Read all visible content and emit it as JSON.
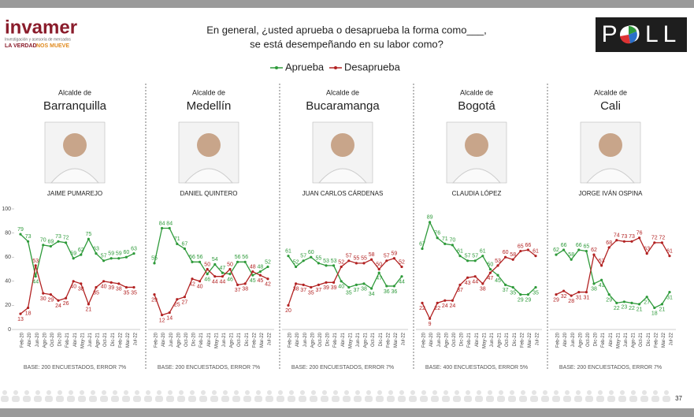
{
  "header": {
    "logo_text": "invamer",
    "logo_sub": "Investigación y asesoría de mercados",
    "slogan_a": "LA VERDAD",
    "slogan_b": "NOS MUEVE",
    "question_line1": "En general, ¿usted aprueba o desaprueba la forma como___,",
    "question_line2": "se está desempeñando en su labor como?",
    "poll_logo": "POLL"
  },
  "page_number": "37",
  "chart_data": [
    {
      "type": "line",
      "pretitle": "Alcalde de",
      "title": "Barranquilla",
      "person": "JAIME PUMAREJO",
      "note": "BASE: 200 ENCUESTADOS, ERROR 7%",
      "categories": [
        "Feb-20",
        "Abr-20",
        "Jun-20",
        "Ago-20",
        "Oct-20",
        "Dic-20",
        "Feb-21",
        "Abr-21",
        "May-21",
        "Jun-21",
        "Ago-21",
        "Oct-21",
        "Dic-21",
        "Feb-22",
        "Mar-22",
        "Jul-22"
      ],
      "series": [
        {
          "name": "Aprueba",
          "color": "#2e9a3a",
          "values": [
            79,
            73,
            44,
            70,
            69,
            73,
            72,
            59,
            62,
            75,
            63,
            57,
            59,
            59,
            60,
            63
          ]
        },
        {
          "name": "Desaprueba",
          "color": "#b22222",
          "values": [
            13,
            18,
            53,
            30,
            29,
            24,
            26,
            40,
            38,
            21,
            35,
            40,
            39,
            38,
            35,
            35
          ]
        }
      ],
      "ylim": [
        0,
        100
      ],
      "yticks": [
        0,
        20,
        40,
        60,
        80,
        100
      ]
    },
    {
      "type": "line",
      "pretitle": "Alcalde de",
      "title": "Medellín",
      "person": "DANIEL QUINTERO",
      "note": "BASE: 200 ENCUESTADOS, ERROR 7%",
      "categories": [
        "Feb-20",
        "Abr-20",
        "Jun-20",
        "Ago-20",
        "Oct-20",
        "Dic-20",
        "Feb-21",
        "Abr-21",
        "May-21",
        "Jun-21",
        "Ago-21",
        "Oct-21",
        "Dic-21",
        "Feb-22",
        "Mar-22",
        "Jul-22"
      ],
      "series": [
        {
          "color": "#2e9a3a",
          "values": [
            55,
            84,
            84,
            71,
            67,
            56,
            56,
            46,
            54,
            47,
            46,
            56,
            56,
            45,
            48,
            52
          ]
        },
        {
          "color": "#b22222",
          "values": [
            29,
            12,
            14,
            25,
            27,
            42,
            40,
            50,
            44,
            44,
            50,
            37,
            38,
            48,
            45,
            42
          ]
        }
      ],
      "ylim": [
        0,
        100
      ]
    },
    {
      "type": "line",
      "pretitle": "Alcalde de",
      "title": "Bucaramanga",
      "person": "JUAN CARLOS CÁRDENAS",
      "note": "BASE: 200 ENCUESTADOS, ERROR 7%",
      "categories": [
        "Feb-20",
        "Abr-20",
        "Jun-20",
        "Ago-20",
        "Oct-20",
        "Dic-20",
        "Feb-21",
        "Abr-21",
        "May-21",
        "Jun-21",
        "Ago-21",
        "Oct-21",
        "Dic-21",
        "Feb-22",
        "Mar-22",
        "Jul-22"
      ],
      "series": [
        {
          "color": "#2e9a3a",
          "values": [
            61,
            52,
            57,
            60,
            55,
            53,
            53,
            40,
            35,
            37,
            38,
            34,
            47,
            36,
            36,
            44
          ]
        },
        {
          "color": "#b22222",
          "values": [
            20,
            38,
            37,
            35,
            37,
            39,
            39,
            52,
            57,
            55,
            55,
            58,
            50,
            57,
            59,
            52
          ]
        }
      ],
      "ylim": [
        0,
        100
      ]
    },
    {
      "type": "line",
      "pretitle": "Alcalde de",
      "title": "Bogotá",
      "person": "CLAUDIA LÓPEZ",
      "note": "BASE: 400 ENCUESTADOS, ERROR 5%",
      "categories": [
        "Feb-20",
        "Abr-20",
        "Jun-20",
        "Ago-20",
        "Oct-20",
        "Dic-20",
        "Feb-21",
        "Abr-21",
        "May-21",
        "Jun-21",
        "Ago-21",
        "Oct-21",
        "Dic-21",
        "Feb-22",
        "Mar-22",
        "Jul-22"
      ],
      "series": [
        {
          "color": "#2e9a3a",
          "values": [
            67,
            89,
            76,
            71,
            70,
            61,
            57,
            57,
            61,
            50,
            45,
            37,
            35,
            29,
            29,
            35
          ]
        },
        {
          "color": "#b22222",
          "values": [
            22,
            9,
            22,
            24,
            24,
            37,
            43,
            44,
            38,
            47,
            53,
            60,
            58,
            65,
            66,
            61
          ]
        }
      ],
      "ylim": [
        0,
        100
      ]
    },
    {
      "type": "line",
      "pretitle": "Alcalde de",
      "title": "Cali",
      "person": "JORGE IVÁN OSPINA",
      "note": "BASE: 200 ENCUESTADOS, ERROR 7%",
      "categories": [
        "Feb-20",
        "Abr-20",
        "Jun-20",
        "Ago-20",
        "Oct-20",
        "Dic-20",
        "Feb-21",
        "Abr-21",
        "May-21",
        "Jun-21",
        "Ago-21",
        "Oct-21",
        "Dic-21",
        "Feb-22",
        "Mar-22",
        "Jul-22"
      ],
      "series": [
        {
          "color": "#2e9a3a",
          "values": [
            62,
            66,
            58,
            66,
            65,
            38,
            41,
            29,
            22,
            23,
            22,
            21,
            27,
            18,
            21,
            31
          ]
        },
        {
          "color": "#b22222",
          "values": [
            29,
            32,
            28,
            31,
            31,
            62,
            53,
            68,
            74,
            73,
            73,
            76,
            63,
            72,
            72,
            61
          ]
        }
      ],
      "ylim": [
        0,
        100
      ]
    }
  ]
}
